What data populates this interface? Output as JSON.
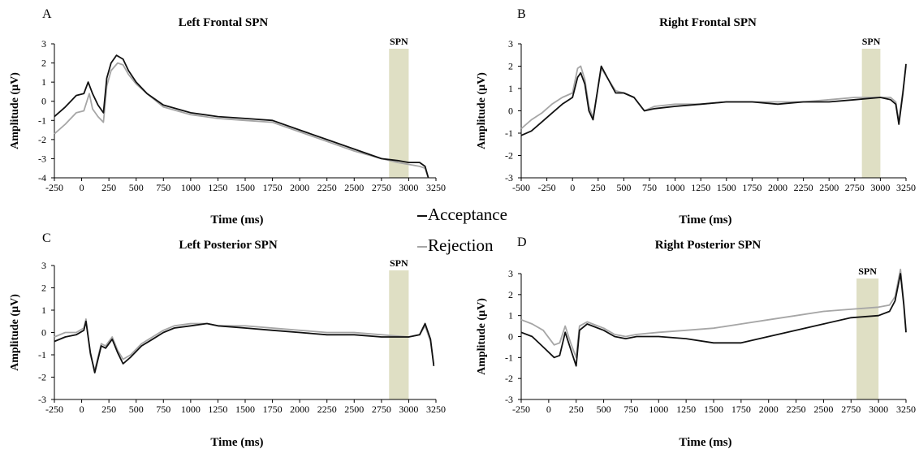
{
  "legend": {
    "acceptance": "Acceptance",
    "rejection": "Rejection"
  },
  "colors": {
    "acceptance": "#111111",
    "rejection": "#a6a6a6",
    "spn_band": "#dfdfc4"
  },
  "chart_data": [
    {
      "type": "line",
      "panel": "A",
      "title": "Left Frontal SPN",
      "xlabel": "Time (ms)",
      "ylabel": "Amplitude (µV)",
      "xlim": [
        -250,
        3250
      ],
      "ylim": [
        -4,
        3
      ],
      "xticks": [
        -250,
        0,
        250,
        500,
        750,
        1000,
        1250,
        1500,
        1750,
        2000,
        2250,
        2500,
        2750,
        3000,
        3250
      ],
      "yticks": [
        -4,
        -3,
        -2,
        -1,
        0,
        1,
        2,
        3
      ],
      "band": {
        "label": "SPN",
        "x0": 2820,
        "x1": 3000
      },
      "series": [
        {
          "name": "Acceptance",
          "x": [
            -250,
            -150,
            -50,
            20,
            60,
            100,
            150,
            200,
            230,
            270,
            320,
            380,
            430,
            500,
            600,
            750,
            1000,
            1250,
            1500,
            1750,
            2000,
            2250,
            2500,
            2750,
            2900,
            3000,
            3100,
            3150,
            3180
          ],
          "y": [
            -0.8,
            -0.3,
            0.3,
            0.4,
            1.0,
            0.4,
            -0.2,
            -0.6,
            1.2,
            2.0,
            2.4,
            2.2,
            1.6,
            1.0,
            0.4,
            -0.2,
            -0.6,
            -0.8,
            -0.9,
            -1.0,
            -1.5,
            -2.0,
            -2.5,
            -3.0,
            -3.1,
            -3.2,
            -3.2,
            -3.4,
            -4.0
          ]
        },
        {
          "name": "Rejection",
          "x": [
            -250,
            -150,
            -50,
            20,
            70,
            100,
            150,
            200,
            230,
            270,
            330,
            380,
            430,
            500,
            600,
            750,
            1000,
            1250,
            1500,
            1750,
            2000,
            2250,
            2500,
            2750,
            2900,
            3000,
            3100,
            3150,
            3180
          ],
          "y": [
            -1.7,
            -1.2,
            -0.6,
            -0.5,
            0.4,
            -0.4,
            -0.8,
            -1.1,
            0.8,
            1.6,
            2.0,
            1.9,
            1.4,
            0.9,
            0.4,
            -0.3,
            -0.7,
            -0.9,
            -1.0,
            -1.1,
            -1.6,
            -2.1,
            -2.6,
            -3.0,
            -3.2,
            -3.3,
            -3.4,
            -3.5,
            -4.0
          ]
        }
      ]
    },
    {
      "type": "line",
      "panel": "B",
      "title": "Right Frontal SPN",
      "xlabel": "Time (ms)",
      "ylabel": "Amplitude (µV)",
      "xlim": [
        -500,
        3250
      ],
      "ylim": [
        -3,
        3
      ],
      "xticks": [
        -500,
        -250,
        0,
        250,
        500,
        750,
        1000,
        1250,
        1500,
        1750,
        2000,
        2250,
        2500,
        2750,
        3000,
        3250
      ],
      "yticks": [
        -3,
        -2,
        -1,
        0,
        1,
        2,
        3
      ],
      "band": {
        "label": "SPN",
        "x0": 2820,
        "x1": 3000
      },
      "series": [
        {
          "name": "Acceptance",
          "x": [
            -500,
            -400,
            -300,
            -200,
            -100,
            0,
            50,
            80,
            120,
            160,
            200,
            280,
            350,
            420,
            500,
            600,
            700,
            800,
            1000,
            1250,
            1500,
            1750,
            2000,
            2250,
            2500,
            2750,
            3000,
            3100,
            3150,
            3180,
            3220,
            3250
          ],
          "y": [
            -1.1,
            -0.9,
            -0.5,
            -0.1,
            0.3,
            0.6,
            1.5,
            1.7,
            1.2,
            0.0,
            -0.4,
            2.0,
            1.4,
            0.8,
            0.8,
            0.6,
            0.0,
            0.1,
            0.2,
            0.3,
            0.4,
            0.4,
            0.3,
            0.4,
            0.4,
            0.5,
            0.6,
            0.5,
            0.3,
            -0.6,
            0.8,
            2.1
          ]
        },
        {
          "name": "Rejection",
          "x": [
            -500,
            -400,
            -300,
            -200,
            -100,
            0,
            50,
            80,
            120,
            160,
            200,
            280,
            350,
            420,
            500,
            600,
            700,
            800,
            1000,
            1250,
            1500,
            1750,
            2000,
            2250,
            2500,
            2750,
            3000,
            3100,
            3150,
            3180,
            3220,
            3250
          ],
          "y": [
            -0.8,
            -0.4,
            -0.1,
            0.3,
            0.6,
            0.8,
            1.9,
            2.0,
            1.4,
            0.2,
            -0.3,
            1.9,
            1.4,
            0.9,
            0.8,
            0.6,
            0.0,
            0.2,
            0.3,
            0.3,
            0.4,
            0.4,
            0.4,
            0.4,
            0.5,
            0.6,
            0.6,
            0.6,
            0.4,
            -0.5,
            0.9,
            2.0
          ]
        }
      ]
    },
    {
      "type": "line",
      "panel": "C",
      "title": "Left Posterior SPN",
      "xlabel": "Time (ms)",
      "ylabel": "Amplitude (µV)",
      "xlim": [
        -250,
        3250
      ],
      "ylim": [
        -3,
        3
      ],
      "xticks": [
        -250,
        0,
        250,
        500,
        750,
        1000,
        1250,
        1500,
        1750,
        2000,
        2250,
        2500,
        2750,
        3000,
        3250
      ],
      "yticks": [
        -3,
        -2,
        -1,
        0,
        1,
        2,
        3
      ],
      "band": {
        "label": "SPN",
        "x0": 2820,
        "x1": 3000
      },
      "series": [
        {
          "name": "Acceptance",
          "x": [
            -250,
            -150,
            -50,
            20,
            40,
            80,
            120,
            180,
            220,
            280,
            330,
            380,
            450,
            550,
            650,
            750,
            850,
            1000,
            1150,
            1250,
            1500,
            1750,
            2000,
            2250,
            2500,
            2750,
            3000,
            3100,
            3150,
            3200,
            3230
          ],
          "y": [
            -0.4,
            -0.2,
            -0.1,
            0.1,
            0.5,
            -0.9,
            -1.8,
            -0.6,
            -0.7,
            -0.3,
            -0.9,
            -1.4,
            -1.1,
            -0.6,
            -0.3,
            0.0,
            0.2,
            0.3,
            0.4,
            0.3,
            0.2,
            0.1,
            0.0,
            -0.1,
            -0.1,
            -0.2,
            -0.2,
            -0.1,
            0.4,
            -0.3,
            -1.5
          ]
        },
        {
          "name": "Rejection",
          "x": [
            -250,
            -150,
            -50,
            20,
            40,
            80,
            120,
            180,
            220,
            280,
            330,
            380,
            450,
            550,
            650,
            750,
            850,
            1000,
            1150,
            1250,
            1500,
            1750,
            2000,
            2250,
            2500,
            2750,
            3000,
            3100,
            3150,
            3200,
            3230
          ],
          "y": [
            -0.2,
            0.0,
            0.0,
            0.2,
            0.6,
            -1.0,
            -1.7,
            -0.5,
            -0.6,
            -0.2,
            -0.8,
            -1.2,
            -1.0,
            -0.5,
            -0.2,
            0.1,
            0.3,
            0.4,
            0.4,
            0.3,
            0.3,
            0.2,
            0.1,
            0.0,
            0.0,
            -0.1,
            -0.2,
            -0.1,
            0.3,
            -0.4,
            -1.4
          ]
        }
      ]
    },
    {
      "type": "line",
      "panel": "D",
      "title": "Right Posterior SPN",
      "xlabel": "Time (ms)",
      "ylabel": "Amplitude (µV)",
      "xlim": [
        -250,
        3250
      ],
      "ylim": [
        -3,
        3
      ],
      "xticks": [
        -250,
        0,
        250,
        500,
        750,
        1000,
        1250,
        1500,
        1750,
        2000,
        2250,
        2500,
        2750,
        3000,
        3250
      ],
      "yticks": [
        -3,
        -2,
        -1,
        0,
        1,
        2,
        3
      ],
      "band": {
        "label": "SPN",
        "x0": 2800,
        "x1": 3000
      },
      "series": [
        {
          "name": "Acceptance",
          "x": [
            -250,
            -150,
            -50,
            50,
            100,
            150,
            200,
            250,
            280,
            350,
            400,
            500,
            600,
            700,
            800,
            1000,
            1250,
            1500,
            1750,
            2000,
            2250,
            2500,
            2750,
            3000,
            3100,
            3150,
            3200,
            3230,
            3250
          ],
          "y": [
            0.2,
            0.0,
            -0.5,
            -1.0,
            -0.9,
            0.2,
            -0.6,
            -1.4,
            0.3,
            0.6,
            0.5,
            0.3,
            0.0,
            -0.1,
            0.0,
            0.0,
            -0.1,
            -0.3,
            -0.3,
            0.0,
            0.3,
            0.6,
            0.9,
            1.0,
            1.2,
            1.7,
            3.0,
            1.5,
            0.2
          ]
        },
        {
          "name": "Rejection",
          "x": [
            -250,
            -150,
            -50,
            50,
            100,
            150,
            200,
            250,
            280,
            350,
            400,
            500,
            600,
            700,
            800,
            1000,
            1250,
            1500,
            1750,
            2000,
            2250,
            2500,
            2750,
            3000,
            3100,
            3150,
            3200,
            3230,
            3250
          ],
          "y": [
            0.8,
            0.6,
            0.3,
            -0.4,
            -0.3,
            0.5,
            -0.3,
            -1.0,
            0.5,
            0.7,
            0.6,
            0.4,
            0.1,
            0.0,
            0.1,
            0.2,
            0.3,
            0.4,
            0.6,
            0.8,
            1.0,
            1.2,
            1.3,
            1.4,
            1.5,
            1.9,
            3.2,
            1.6,
            0.3
          ]
        }
      ]
    }
  ]
}
